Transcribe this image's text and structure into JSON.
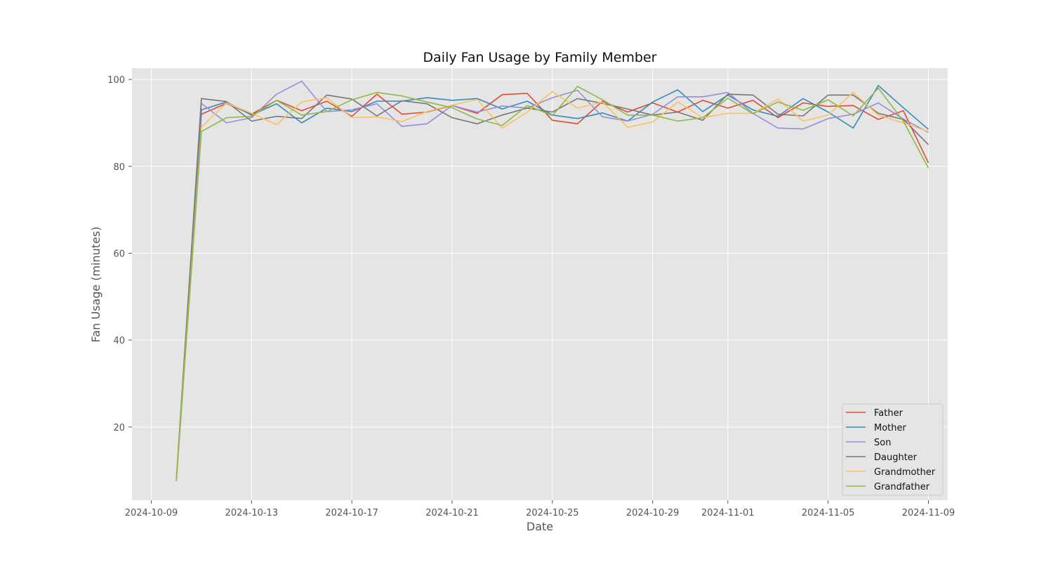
{
  "chart_data": {
    "type": "line",
    "title": "Daily Fan Usage by Family Member",
    "xlabel": "Date",
    "ylabel": "Fan Usage (minutes)",
    "x": [
      "2024-10-10",
      "2024-10-11",
      "2024-10-12",
      "2024-10-13",
      "2024-10-14",
      "2024-10-15",
      "2024-10-16",
      "2024-10-17",
      "2024-10-18",
      "2024-10-19",
      "2024-10-20",
      "2024-10-21",
      "2024-10-22",
      "2024-10-23",
      "2024-10-24",
      "2024-10-25",
      "2024-10-26",
      "2024-10-27",
      "2024-10-28",
      "2024-10-29",
      "2024-10-30",
      "2024-10-31",
      "2024-11-01",
      "2024-11-02",
      "2024-11-03",
      "2024-11-04",
      "2024-11-05",
      "2024-11-06",
      "2024-11-07",
      "2024-11-08",
      "2024-11-09"
    ],
    "x_range": [
      "2024-10-08",
      "2024-11-10"
    ],
    "x_ticks": [
      "2024-10-09",
      "2024-10-13",
      "2024-10-17",
      "2024-10-21",
      "2024-10-25",
      "2024-10-29",
      "2024-11-01",
      "2024-11-05",
      "2024-11-09"
    ],
    "ylim": [
      3,
      103
    ],
    "y_ticks": [
      20,
      40,
      60,
      80,
      100
    ],
    "grid": true,
    "legend_position": "bottom-right",
    "series": [
      {
        "name": "Father",
        "color": "#E24A33",
        "values": [
          8,
          92,
          94.5,
          92,
          95.2,
          92.8,
          95,
          91.5,
          96.6,
          92,
          92.5,
          94,
          92.2,
          96.5,
          96.8,
          90.6,
          89.8,
          95,
          92.5,
          94.6,
          92.5,
          95.2,
          93.4,
          95.2,
          91.2,
          94.6,
          93.8,
          94,
          90.8,
          92.8,
          80.8
        ]
      },
      {
        "name": "Mother",
        "color": "#348ABD",
        "values": [
          8,
          93,
          94.8,
          91.8,
          94.4,
          90,
          93.4,
          92.6,
          95,
          95,
          95.8,
          95.2,
          95.6,
          93.2,
          95,
          91.8,
          91,
          92.3,
          90.4,
          94.8,
          97.6,
          92.6,
          96.4,
          93,
          91.5,
          95.6,
          92.5,
          88.8,
          98.6,
          93.5,
          88.5
        ]
      },
      {
        "name": "Son",
        "color": "#988ED5",
        "values": [
          8,
          94.5,
          90,
          91.2,
          96.6,
          99.6,
          92.6,
          93,
          94.4,
          89.2,
          89.8,
          94,
          92.5,
          93.9,
          93.4,
          95.8,
          97.5,
          91.4,
          90.4,
          92,
          96,
          96,
          97,
          92.2,
          88.8,
          88.6,
          91,
          92,
          94.6,
          90.9,
          87.8
        ]
      },
      {
        "name": "Daughter",
        "color": "#777777",
        "values": [
          8,
          95.6,
          94.9,
          90.4,
          91.5,
          91,
          96.4,
          95.5,
          91.6,
          95.1,
          94.4,
          91.2,
          89.8,
          91.8,
          93.4,
          92.5,
          95.6,
          94.5,
          93.2,
          91.8,
          92.5,
          90.6,
          96.6,
          96.4,
          92,
          91.6,
          96.4,
          96.4,
          92.2,
          90.8,
          85
        ]
      },
      {
        "name": "Grandmother",
        "color": "#FBC15E",
        "values": [
          8,
          89,
          94.6,
          92.2,
          89.6,
          94.8,
          95.8,
          91.2,
          91.4,
          90.3,
          92.6,
          94.1,
          95.4,
          88.8,
          92.5,
          97.2,
          93.4,
          94.8,
          89,
          90.2,
          94.8,
          91.2,
          92.2,
          92.2,
          95.5,
          90.4,
          91.8,
          97,
          91.8,
          90,
          88
        ]
      },
      {
        "name": "Grandfather",
        "color": "#8EBA42",
        "values": [
          7.5,
          88,
          91.2,
          91.5,
          95.2,
          91.8,
          92.6,
          95.3,
          97,
          96.2,
          94.8,
          93.5,
          90.9,
          89.4,
          94,
          91.7,
          98.4,
          95.3,
          91.8,
          91.8,
          90.4,
          91.2,
          95.7,
          92.1,
          94.8,
          92.9,
          95.3,
          91.6,
          98,
          90.4,
          79.6
        ]
      }
    ]
  }
}
